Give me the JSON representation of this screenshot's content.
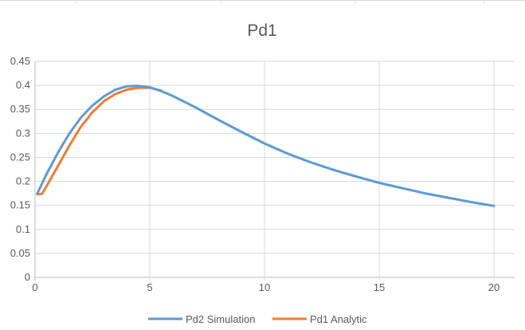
{
  "chart_data": {
    "type": "line",
    "title": "Pd1",
    "xlabel": "",
    "ylabel": "",
    "xlim": [
      0,
      20
    ],
    "ylim": [
      0,
      0.45
    ],
    "x_ticks": [
      0,
      5,
      10,
      15,
      20
    ],
    "y_ticks": [
      "0",
      "0.05",
      "0.1",
      "0.15",
      "0.2",
      "0.25",
      "0.3",
      "0.35",
      "0.4",
      "0.45"
    ],
    "grid": true,
    "legend_position": "bottom",
    "series": [
      {
        "name": "Pd2 Simulation",
        "color": "#5B9BD5",
        "x": [
          0.1,
          0.5,
          1,
          1.5,
          2,
          2.5,
          3,
          3.5,
          4,
          4.5,
          5,
          5.5,
          6,
          7,
          8,
          9,
          10,
          11,
          12,
          13,
          14,
          15,
          16,
          17,
          18,
          19,
          20
        ],
        "y": [
          0.175,
          0.215,
          0.26,
          0.3,
          0.333,
          0.358,
          0.377,
          0.391,
          0.398,
          0.399,
          0.396,
          0.388,
          0.378,
          0.354,
          0.328,
          0.303,
          0.279,
          0.258,
          0.24,
          0.224,
          0.21,
          0.197,
          0.186,
          0.175,
          0.166,
          0.157,
          0.149
        ]
      },
      {
        "name": "Pd1 Analytic",
        "color": "#ED7D31",
        "x": [
          0.1,
          0.3,
          0.5,
          1,
          1.5,
          2,
          2.5,
          3,
          3.5,
          4,
          4.5,
          5,
          5.5
        ],
        "y": [
          0.173,
          0.174,
          0.19,
          0.232,
          0.275,
          0.314,
          0.344,
          0.367,
          0.382,
          0.391,
          0.395,
          0.395,
          0.389
        ]
      }
    ]
  }
}
